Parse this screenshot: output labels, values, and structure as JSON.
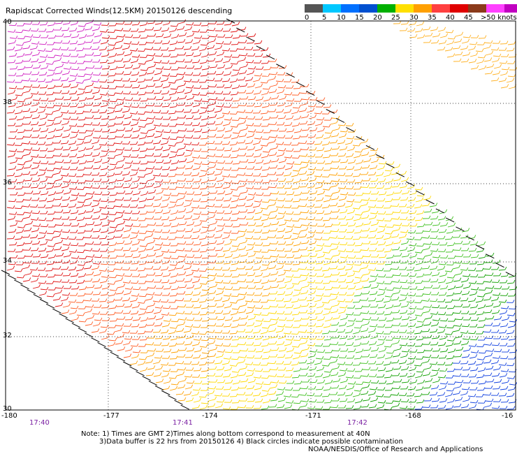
{
  "title": "Rapidscat Corrected Winds(12.5KM) 20150126 descending",
  "legend": {
    "colors": [
      "#555555",
      "#00c8ff",
      "#0070ff",
      "#0050d0",
      "#00b000",
      "#ffe000",
      "#ffa000",
      "#ff4040",
      "#e00000",
      "#8b3a1a",
      "#ff40ff",
      "#c000c0",
      "#400080"
    ],
    "labels": [
      "0",
      "5",
      "10",
      "15",
      "20",
      "25",
      "30",
      "35",
      "40",
      "45",
      ">50 knots"
    ]
  },
  "axes": {
    "lat_labels": [
      "40",
      "38",
      "36",
      "34",
      "32",
      "30"
    ],
    "lon_labels": [
      "-180",
      "-177",
      "-174",
      "-171",
      "-168",
      "-16"
    ]
  },
  "times": [
    "17:40",
    "17:41",
    "17:42"
  ],
  "notes": {
    "line1": "Note: 1) Times are GMT 2)Times along bottom correspond to measurement at 40N",
    "line2": "3)Data buffer is 22 hrs from 20150126 4) Black circles indicate possible contamination",
    "line3": "NOAA/NESDIS/Office of Research and Applications"
  }
}
